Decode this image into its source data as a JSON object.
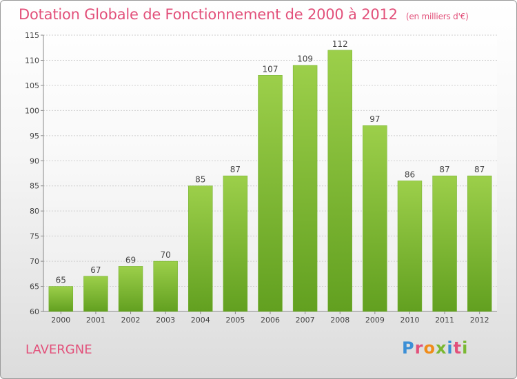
{
  "chart_title": "Dotation Globale de Fonctionnement de 2000 à 2012",
  "chart_subtitle": "(en milliers d'€)",
  "place_name": "LAVERGNE",
  "logo_text": "Proxiti",
  "colors": {
    "title": "#e2507a",
    "bar_light": "#9ccf4a",
    "bar_dark": "#62a020",
    "grid": "#cfcfcf",
    "logo": [
      "#3b8fd6",
      "#e2507a",
      "#f08c1a",
      "#7ab832",
      "#3b8fd6",
      "#e2507a",
      "#7ab832"
    ]
  },
  "chart_data": {
    "type": "bar",
    "title": "Dotation Globale de Fonctionnement de 2000 à 2012",
    "subtitle": "(en milliers d'€)",
    "categories": [
      "2000",
      "2001",
      "2002",
      "2003",
      "2004",
      "2005",
      "2006",
      "2007",
      "2008",
      "2009",
      "2010",
      "2011",
      "2012"
    ],
    "values": [
      65,
      67,
      69,
      70,
      85,
      87,
      107,
      109,
      112,
      97,
      86,
      87,
      87
    ],
    "ylim": [
      60,
      115
    ],
    "yticks": [
      60,
      65,
      70,
      75,
      80,
      85,
      90,
      95,
      100,
      105,
      110,
      115
    ],
    "grid": true,
    "data_labels": true
  }
}
